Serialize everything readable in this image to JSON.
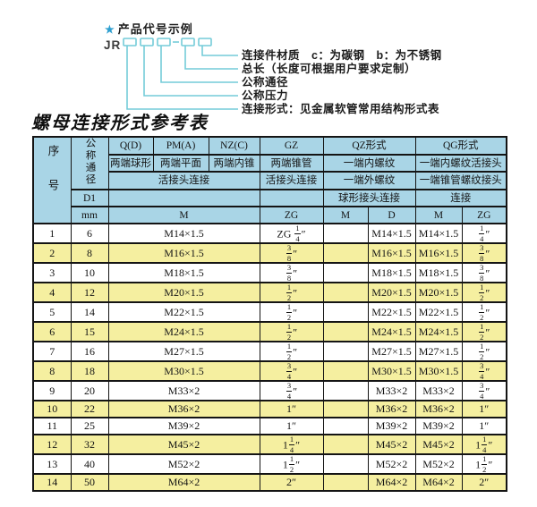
{
  "colors": {
    "header_bg": "#a9d5e6",
    "row_alt": "#f5efa0",
    "accent": "#74ccd9",
    "star": "#2e9fd0",
    "border": "#141414",
    "text": "#141414"
  },
  "diagram": {
    "star_icon": "★",
    "title": "产品代号示例",
    "prefix": "JR",
    "labels": [
      "连接件材质　c：为碳钢　b：为不锈钢",
      "总长（长度可根据用户要求定制）",
      "公称通径",
      "公称压力",
      "连接形式：见金属软管常用结构形式表"
    ]
  },
  "table": {
    "title": "螺母连接形式参考表",
    "header": {
      "seq": "序号",
      "nominal_diameter": "公称通径",
      "d1": "D1",
      "mm": "mm",
      "m_unit": "M",
      "union_connection": "活接头连接",
      "q": {
        "code": "Q(D)",
        "desc": "两端球形"
      },
      "pm": {
        "code": "PM(A)",
        "desc": "两端平面"
      },
      "nz": {
        "code": "NZ(C)",
        "desc": "两端内锥"
      },
      "gz": {
        "code": "GZ",
        "desc": "两端锥管",
        "row3": "活接头连接",
        "unit": "ZG"
      },
      "qz": {
        "code": "QZ形式",
        "row2": "一端内螺纹",
        "row3": "一端外螺纹",
        "row4": "球形接头连接",
        "unit_m": "M",
        "unit_d": "D"
      },
      "qg": {
        "code": "QG形式",
        "row2": "一端内螺纹活接头",
        "row3": "一端锥管螺纹接头",
        "row4": "连接",
        "unit_m": "M",
        "unit_zg": "ZG"
      }
    },
    "rows": [
      {
        "no": "1",
        "mm": "6",
        "m": "M14×1.5",
        "gz": "ZG {1/4}″",
        "qz_m": "",
        "qz_d": "M14×1.5",
        "qg_m": "M14×1.5",
        "qg_zg": "{1/4}″"
      },
      {
        "no": "2",
        "mm": "8",
        "m": "M16×1.5",
        "gz": "{3/8}″",
        "qz_m": "",
        "qz_d": "M16×1.5",
        "qg_m": "M16×1.5",
        "qg_zg": "{3/8}″"
      },
      {
        "no": "3",
        "mm": "10",
        "m": "M18×1.5",
        "gz": "{3/8}″",
        "qz_m": "",
        "qz_d": "M18×1.5",
        "qg_m": "M18×1.5",
        "qg_zg": "{3/8}″"
      },
      {
        "no": "4",
        "mm": "12",
        "m": "M20×1.5",
        "gz": "{1/2}″",
        "qz_m": "",
        "qz_d": "M20×1.5",
        "qg_m": "M20×1.5",
        "qg_zg": "{1/2}″"
      },
      {
        "no": "5",
        "mm": "14",
        "m": "M22×1.5",
        "gz": "{1/2}″",
        "qz_m": "",
        "qz_d": "M22×1.5",
        "qg_m": "M22×1.5",
        "qg_zg": "{1/2}″"
      },
      {
        "no": "6",
        "mm": "15",
        "m": "M24×1.5",
        "gz": "{1/2}″",
        "qz_m": "",
        "qz_d": "M24×1.5",
        "qg_m": "M24×1.5",
        "qg_zg": "{1/2}″"
      },
      {
        "no": "7",
        "mm": "16",
        "m": "M27×1.5",
        "gz": "{1/2}″",
        "qz_m": "",
        "qz_d": "M27×1.5",
        "qg_m": "M27×1.5",
        "qg_zg": "{1/2}″"
      },
      {
        "no": "8",
        "mm": "18",
        "m": "M30×1.5",
        "gz": "{3/4}″",
        "qz_m": "",
        "qz_d": "M30×1.5",
        "qg_m": "M30×1.5",
        "qg_zg": "{3/4}″"
      },
      {
        "no": "9",
        "mm": "20",
        "m": "M33×2",
        "gz": "{3/4}″",
        "qz_m": "",
        "qz_d": "M33×2",
        "qg_m": "M33×2",
        "qg_zg": "{3/4}″"
      },
      {
        "no": "10",
        "mm": "22",
        "m": "M36×2",
        "gz": "1″",
        "qz_m": "",
        "qz_d": "M36×2",
        "qg_m": "M36×2",
        "qg_zg": "1″"
      },
      {
        "no": "11",
        "mm": "25",
        "m": "M39×2",
        "gz": "1″",
        "qz_m": "",
        "qz_d": "M39×2",
        "qg_m": "M39×2",
        "qg_zg": "1″"
      },
      {
        "no": "12",
        "mm": "32",
        "m": "M45×2",
        "gz": "1{1/4}″",
        "qz_m": "",
        "qz_d": "M45×2",
        "qg_m": "M45×2",
        "qg_zg": "1{1/4}″"
      },
      {
        "no": "13",
        "mm": "40",
        "m": "M52×2",
        "gz": "1{1/2}″",
        "qz_m": "",
        "qz_d": "M52×2",
        "qg_m": "M52×2",
        "qg_zg": "1{1/2}″"
      },
      {
        "no": "14",
        "mm": "50",
        "m": "M64×2",
        "gz": "2″",
        "qz_m": "",
        "qz_d": "M64×2",
        "qg_m": "M64×2",
        "qg_zg": "2″"
      }
    ]
  }
}
